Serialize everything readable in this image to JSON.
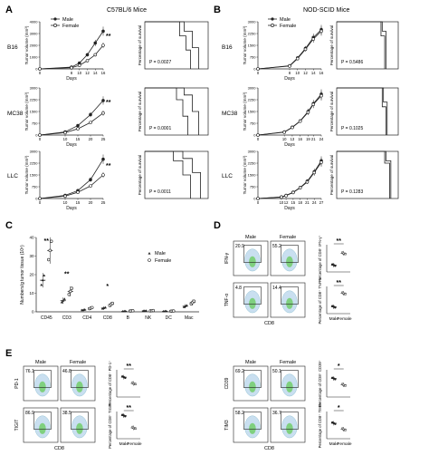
{
  "panel_letters": [
    "A",
    "B",
    "C",
    "D",
    "E"
  ],
  "panel_a": {
    "title": "C57BL/6 Mice",
    "legend": [
      "Male",
      "Female"
    ],
    "row_labels": [
      "B16",
      "MC38",
      "LLC"
    ],
    "ylabel": "Tumor volume (mm³)",
    "xlabel": "Days",
    "survival_ylabel": "Percentage of survival",
    "sig": "**",
    "pvalues": [
      "P = 0.0027",
      "P = 0.0001",
      "P = 0.0011"
    ]
  },
  "panel_b": {
    "title": "NOD-SCID Mice",
    "legend": [
      "Male",
      "Female"
    ],
    "row_labels": [
      "B16",
      "MC38",
      "LLC"
    ],
    "ylabel": "Tumor volume (mm³)",
    "xlabel": "Days",
    "survival_ylabel": "Percentage of survival",
    "pvalues": [
      "P = 0.5486",
      "P = 0.1025",
      "P = 0.1283"
    ]
  },
  "panel_c": {
    "ylabel": "Numbers/g tumor tissue (10⁵)",
    "legend": [
      "Male",
      "Female"
    ],
    "sig_marks": [
      "**",
      "**",
      "*"
    ]
  },
  "panel_d": {
    "cols": [
      "Male",
      "Female"
    ],
    "rows": [
      {
        "axis": "IFN-γ",
        "gates": [
          "20.9",
          "55.2"
        ],
        "ylabel": "Percentage of CD8⁺ IFN-γ⁺",
        "sig": "**"
      },
      {
        "axis": "TNF-α",
        "gates": [
          "4.8",
          "14.4"
        ],
        "ylabel": "Percentage of CD8⁺ TNF-α⁺",
        "sig": "**"
      }
    ],
    "xlabel": "CD8",
    "groups": [
      "Male",
      "Female"
    ]
  },
  "panel_e_left": {
    "cols": [
      "Male",
      "Female"
    ],
    "rows": [
      {
        "axis": "PD-1",
        "gates": [
          "76.1",
          "46.8"
        ],
        "ylabel": "Percentage of CD8⁺ PD-1⁺",
        "sig": "**"
      },
      {
        "axis": "TIGIT",
        "gates": [
          "86.9",
          "38.5"
        ],
        "ylabel": "Percentage of CD8⁺ TIGIT⁺",
        "sig": "**"
      }
    ],
    "xlabel": "CD8",
    "groups": [
      "Male",
      "Female"
    ]
  },
  "panel_e_right": {
    "cols": [
      "Male",
      "Female"
    ],
    "rows": [
      {
        "axis": "CD39",
        "gates": [
          "69.2",
          "50.1"
        ],
        "ylabel": "Percentage of CD8⁺ CD39⁺",
        "sig": "*"
      },
      {
        "axis": "TIM3",
        "gates": [
          "58.2",
          "36.7"
        ],
        "ylabel": "Percentage of CD8⁺ TIM3⁺",
        "sig": "*"
      }
    ],
    "xlabel": "CD8",
    "groups": [
      "Male",
      "Female"
    ]
  },
  "chart_data": [
    {
      "type": "line",
      "panel": "A-B16",
      "title": "B16",
      "xlabel": "Days",
      "ylabel": "Tumor volume (mm³)",
      "x": [
        0,
        8,
        10,
        12,
        14,
        16
      ],
      "ylim": [
        0,
        4000
      ],
      "series": [
        {
          "name": "Male",
          "values": [
            0,
            150,
            500,
            1200,
            2200,
            3200
          ]
        },
        {
          "name": "Female",
          "values": [
            0,
            100,
            300,
            700,
            1200,
            2000
          ]
        }
      ]
    },
    {
      "type": "line",
      "panel": "A-MC38",
      "title": "MC38",
      "xlabel": "Days",
      "ylabel": "Tumor volume (mm³)",
      "x": [
        0,
        10,
        15,
        20,
        25
      ],
      "ylim": [
        0,
        3000
      ],
      "series": [
        {
          "name": "Male",
          "values": [
            0,
            200,
            600,
            1300,
            2200
          ]
        },
        {
          "name": "Female",
          "values": [
            0,
            150,
            400,
            800,
            1400
          ]
        }
      ]
    },
    {
      "type": "line",
      "panel": "A-LLC",
      "title": "LLC",
      "xlabel": "Days",
      "ylabel": "Tumor volume (mm³)",
      "x": [
        0,
        10,
        15,
        20,
        25
      ],
      "ylim": [
        0,
        3000
      ],
      "series": [
        {
          "name": "Male",
          "values": [
            0,
            200,
            500,
            1200,
            2500
          ]
        },
        {
          "name": "Female",
          "values": [
            0,
            150,
            400,
            800,
            1500
          ]
        }
      ]
    },
    {
      "type": "line",
      "panel": "B-B16",
      "title": "B16",
      "xlabel": "Days",
      "ylabel": "Tumor volume (mm³)",
      "x": [
        0,
        8,
        10,
        12,
        14,
        16
      ],
      "ylim": [
        0,
        3000
      ],
      "series": [
        {
          "name": "Male",
          "values": [
            0,
            200,
            700,
            1300,
            2000,
            2500
          ]
        },
        {
          "name": "Female",
          "values": [
            0,
            180,
            650,
            1250,
            1900,
            2400
          ]
        }
      ]
    },
    {
      "type": "line",
      "panel": "B-MC38",
      "title": "MC38",
      "xlabel": "Days",
      "ylabel": "Tumor volume (mm³)",
      "x": [
        0,
        10,
        13,
        16,
        19,
        21,
        24
      ],
      "ylim": [
        0,
        3000
      ],
      "series": [
        {
          "name": "Male",
          "values": [
            0,
            200,
            500,
            900,
            1500,
            2000,
            2600
          ]
        },
        {
          "name": "Female",
          "values": [
            0,
            180,
            480,
            880,
            1450,
            1950,
            2500
          ]
        }
      ]
    },
    {
      "type": "line",
      "panel": "B-LLC",
      "title": "LLC",
      "xlabel": "Days",
      "ylabel": "Tumor volume (mm³)",
      "x": [
        0,
        10,
        12,
        15,
        18,
        21,
        24,
        27
      ],
      "ylim": [
        0,
        3000
      ],
      "series": [
        {
          "name": "Male",
          "values": [
            0,
            100,
            200,
            400,
            700,
            1100,
            1700,
            2400
          ]
        },
        {
          "name": "Female",
          "values": [
            0,
            90,
            180,
            380,
            680,
            1050,
            1650,
            2300
          ]
        }
      ]
    },
    {
      "type": "line",
      "panel": "C-bar",
      "title": "",
      "xlabel": "",
      "ylabel": "Numbers/g tumor tissue (10⁵)",
      "ylim": [
        0,
        40
      ],
      "categories": [
        "CD45",
        "CD3",
        "CD4",
        "CD8",
        "B",
        "NK",
        "DC",
        "Mac"
      ],
      "series": [
        {
          "name": "Male",
          "values": [
            17,
            6,
            1,
            2,
            0.3,
            0.5,
            0.3,
            3
          ]
        },
        {
          "name": "Female",
          "values": [
            33,
            11,
            2,
            4,
            0.5,
            0.6,
            0.4,
            5
          ]
        }
      ]
    },
    {
      "type": "bar",
      "panel": "D-IFN",
      "categories": [
        "Male",
        "Female"
      ],
      "values": [
        20,
        55
      ],
      "ylim": [
        0,
        80
      ]
    },
    {
      "type": "bar",
      "panel": "D-TNF",
      "categories": [
        "Male",
        "Female"
      ],
      "values": [
        5,
        15
      ],
      "ylim": [
        0,
        20
      ]
    },
    {
      "type": "bar",
      "panel": "E-PD1",
      "categories": [
        "Male",
        "Female"
      ],
      "values": [
        73,
        50
      ],
      "ylim": [
        0,
        100
      ]
    },
    {
      "type": "bar",
      "panel": "E-TIGIT",
      "categories": [
        "Male",
        "Female"
      ],
      "values": [
        85,
        40
      ],
      "ylim": [
        0,
        100
      ]
    },
    {
      "type": "bar",
      "panel": "E-CD39",
      "categories": [
        "Male",
        "Female"
      ],
      "values": [
        68,
        45
      ],
      "ylim": [
        0,
        100
      ]
    },
    {
      "type": "bar",
      "panel": "E-TIM3",
      "categories": [
        "Male",
        "Female"
      ],
      "values": [
        57,
        35
      ],
      "ylim": [
        0,
        100
      ]
    }
  ]
}
